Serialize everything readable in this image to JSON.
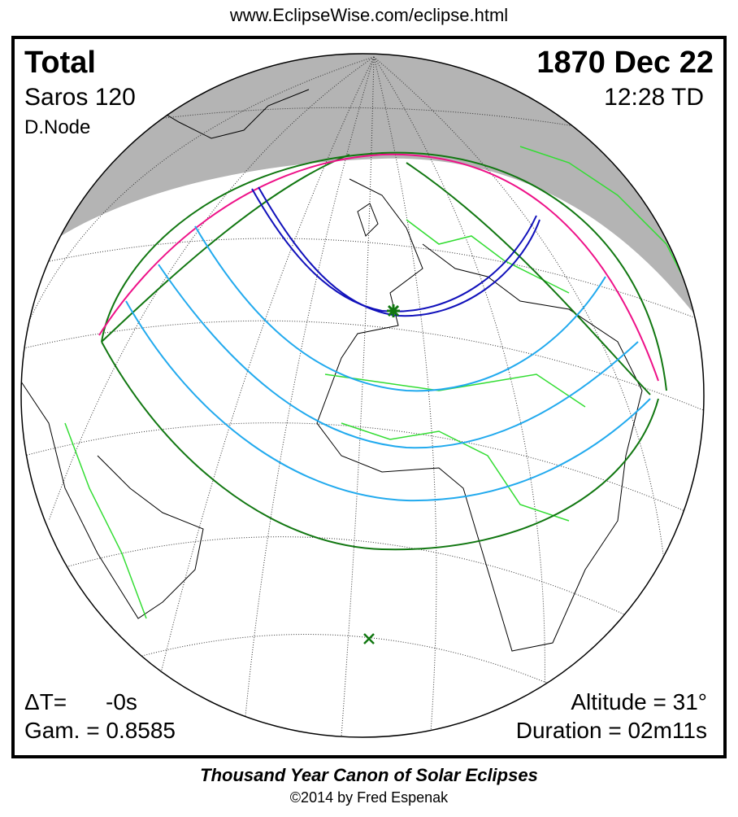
{
  "header": {
    "url": "www.EclipseWise.com/eclipse.html"
  },
  "eclipse": {
    "type": "Total",
    "date": "1870 Dec 22",
    "saros": "Saros 120",
    "time": "12:28 TD",
    "node": "D.Node",
    "delta_t_label": "ΔT=",
    "delta_t_value": "-0s",
    "gamma": "Gam. = 0.8585",
    "altitude": "Altitude = 31°",
    "duration": "Duration = 02m11s"
  },
  "colors": {
    "night_shade": "#b4b4b4",
    "borders": "#33dd33",
    "penumbra_limits": "#117711",
    "rise_set_limit": "#ee1188",
    "partial_magnitude_lines": "#22aaee",
    "totality_path": "#1111bb",
    "greatest_eclipse_marker": "#117711"
  },
  "footer": {
    "title": "Thousand Year Canon of Solar Eclipses",
    "copyright": "©2014 by Fred Espenak"
  }
}
